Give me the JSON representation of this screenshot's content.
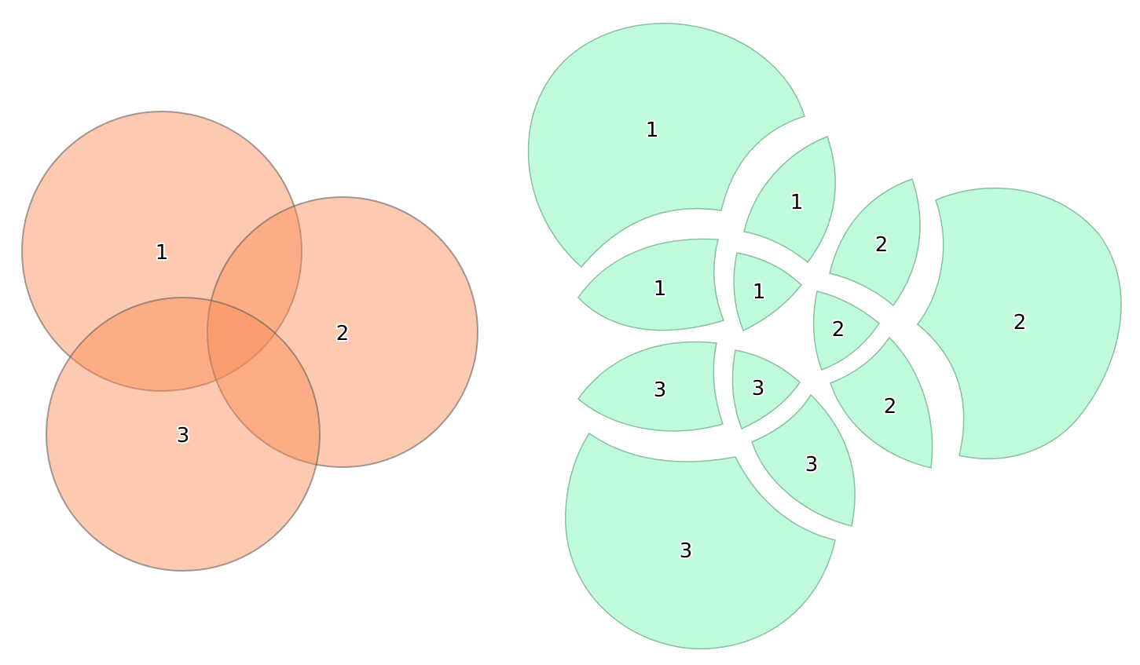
{
  "colors": {
    "venn_fill": "#fb8a52",
    "pieces_fill": "#c0fcd9"
  },
  "venn": {
    "circles": [
      {
        "label": "1"
      },
      {
        "label": "2"
      },
      {
        "label": "3"
      }
    ]
  },
  "exploded": {
    "pieces": [
      {
        "label": "1"
      },
      {
        "label": "1"
      },
      {
        "label": "1"
      },
      {
        "label": "1"
      },
      {
        "label": "2"
      },
      {
        "label": "2"
      },
      {
        "label": "2"
      },
      {
        "label": "2"
      },
      {
        "label": "3"
      },
      {
        "label": "3"
      },
      {
        "label": "3"
      },
      {
        "label": "3"
      }
    ]
  }
}
